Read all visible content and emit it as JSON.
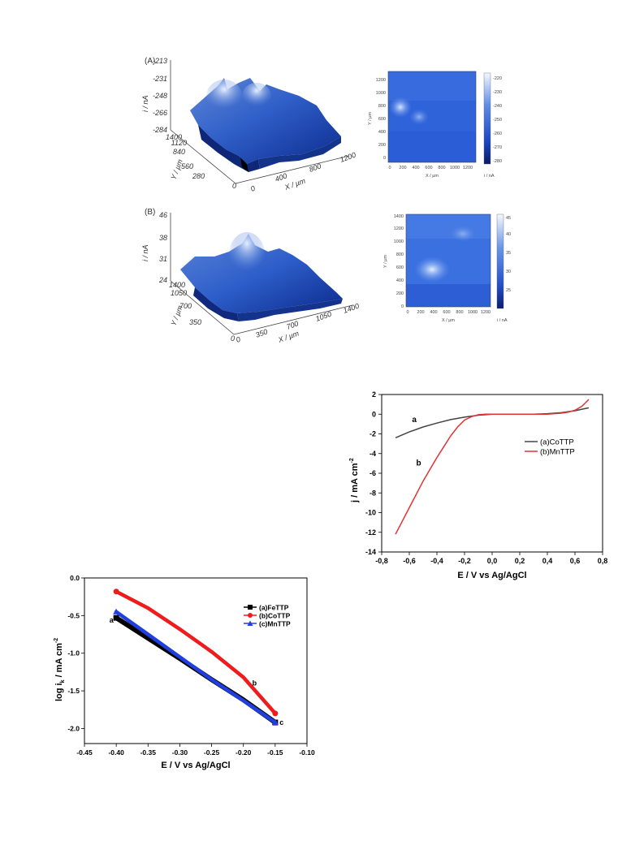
{
  "chart_data": [
    {
      "type": "surface3d",
      "panel_label": "(A)",
      "zlabel": "i / nA",
      "z_ticks": [
        "-213",
        "-231",
        "-248",
        "-266",
        "-284"
      ],
      "ylabel": "Y / µm",
      "y_ticks": [
        "0",
        "280",
        "560",
        "840",
        "1120",
        "1400"
      ],
      "xlabel": "X / µm",
      "x_ticks": [
        "0",
        "400",
        "800",
        "1200"
      ]
    },
    {
      "type": "heatmap",
      "xlabel": "X / µm",
      "ylabel": "Y / µm",
      "x_ticks": [
        "0",
        "200",
        "400",
        "600",
        "800",
        "1000",
        "1200"
      ],
      "y_ticks": [
        "0",
        "200",
        "400",
        "600",
        "800",
        "1000",
        "1200"
      ],
      "colorbar_ticks": [
        "-220",
        "-230",
        "-240",
        "-250",
        "-260",
        "-270",
        "-280"
      ],
      "colorbar_label": "i / nA"
    },
    {
      "type": "surface3d",
      "panel_label": "(B)",
      "zlabel": "i / nA",
      "z_ticks": [
        "46",
        "38",
        "31",
        "24"
      ],
      "ylabel": "Y / µm",
      "y_ticks": [
        "0",
        "350",
        "700",
        "1050",
        "1400"
      ],
      "xlabel": "X / µm",
      "x_ticks": [
        "0",
        "350",
        "700",
        "1050",
        "1400"
      ]
    },
    {
      "type": "heatmap",
      "xlabel": "X / µm",
      "ylabel": "Y / µm",
      "x_ticks": [
        "0",
        "200",
        "400",
        "600",
        "800",
        "1000",
        "1200"
      ],
      "y_ticks": [
        "0",
        "200",
        "400",
        "600",
        "800",
        "1000",
        "1200",
        "1400"
      ],
      "colorbar_ticks": [
        "45",
        "40",
        "35",
        "30",
        "25"
      ],
      "colorbar_label": "i / nA"
    },
    {
      "type": "line",
      "xlabel": "E / V vs Ag/AgCl",
      "ylabel": "j / mA cm",
      "ylabel_sup": "-2",
      "xlim": [
        -0.8,
        0.8
      ],
      "ylim": [
        -14,
        2
      ],
      "x_ticks": [
        -0.8,
        -0.6,
        -0.4,
        -0.2,
        0.0,
        0.2,
        0.4,
        0.6,
        0.8
      ],
      "x_tick_labels": [
        "-0,8",
        "-0,6",
        "-0,4",
        "-0,2",
        "0,0",
        "0,2",
        "0,4",
        "0,6",
        "0,8"
      ],
      "y_ticks": [
        2,
        0,
        -2,
        -4,
        -6,
        -8,
        -10,
        -12,
        -14
      ],
      "legend_position": "right",
      "series": [
        {
          "name": "(a)CoTTP",
          "label": "a",
          "color": "#444444",
          "x": [
            -0.7,
            -0.6,
            -0.5,
            -0.4,
            -0.3,
            -0.2,
            -0.1,
            0.0,
            0.1,
            0.2,
            0.3,
            0.4,
            0.5,
            0.6,
            0.7
          ],
          "y": [
            -2.4,
            -1.8,
            -1.3,
            -0.9,
            -0.55,
            -0.3,
            -0.1,
            0.0,
            0.0,
            0.0,
            0.0,
            0.05,
            0.15,
            0.35,
            0.65
          ]
        },
        {
          "name": "(b)MnTTP",
          "label": "b",
          "color": "#e23333",
          "x": [
            -0.7,
            -0.6,
            -0.5,
            -0.45,
            -0.4,
            -0.35,
            -0.3,
            -0.25,
            -0.2,
            -0.15,
            -0.1,
            -0.05,
            0.0,
            0.1,
            0.2,
            0.3,
            0.4,
            0.5,
            0.55,
            0.6,
            0.65,
            0.7
          ],
          "y": [
            -12.2,
            -9.5,
            -6.8,
            -5.6,
            -4.4,
            -3.3,
            -2.2,
            -1.3,
            -0.6,
            -0.25,
            -0.05,
            0.0,
            0.0,
            0.0,
            0.0,
            0.0,
            0.0,
            0.1,
            0.2,
            0.4,
            0.8,
            1.5
          ]
        }
      ]
    },
    {
      "type": "line",
      "xlabel": "E / V vs Ag/AgCl",
      "ylabel": "log i",
      "ylabel_sub": "k",
      "ylabel_unit": " / mA cm",
      "ylabel_sup": "-2",
      "xlim": [
        -0.45,
        -0.1
      ],
      "ylim": [
        -2.2,
        0.0
      ],
      "x_ticks": [
        -0.45,
        -0.4,
        -0.35,
        -0.3,
        -0.25,
        -0.2,
        -0.15,
        -0.1
      ],
      "x_tick_labels": [
        "-0.45",
        "-0.40",
        "-0.35",
        "-0.30",
        "-0.25",
        "-0.20",
        "-0.15",
        "-0.10"
      ],
      "y_ticks": [
        0.0,
        -0.5,
        -1.0,
        -1.5,
        -2.0
      ],
      "y_tick_labels": [
        "0.0",
        "-0.5",
        "-1.0",
        "-1.5",
        "-2.0"
      ],
      "legend_position": "top-right",
      "series": [
        {
          "name": "(a)FeTTP",
          "label": "a",
          "color": "#000000",
          "marker": "square",
          "x": [
            -0.4,
            -0.35,
            -0.3,
            -0.25,
            -0.2,
            -0.15
          ],
          "y": [
            -0.53,
            -0.8,
            -1.07,
            -1.35,
            -1.62,
            -1.92
          ]
        },
        {
          "name": "(b)CoTTP",
          "label": "b",
          "color": "#ee1c1c",
          "marker": "circle",
          "x": [
            -0.4,
            -0.35,
            -0.3,
            -0.25,
            -0.2,
            -0.15
          ],
          "y": [
            -0.18,
            -0.4,
            -0.68,
            -0.98,
            -1.32,
            -1.8
          ]
        },
        {
          "name": "(c)MnTTP",
          "label": "c",
          "color": "#1f3fe0",
          "marker": "triangle",
          "x": [
            -0.4,
            -0.35,
            -0.3,
            -0.25,
            -0.2,
            -0.15
          ],
          "y": [
            -0.45,
            -0.75,
            -1.05,
            -1.35,
            -1.63,
            -1.92
          ]
        }
      ]
    }
  ]
}
